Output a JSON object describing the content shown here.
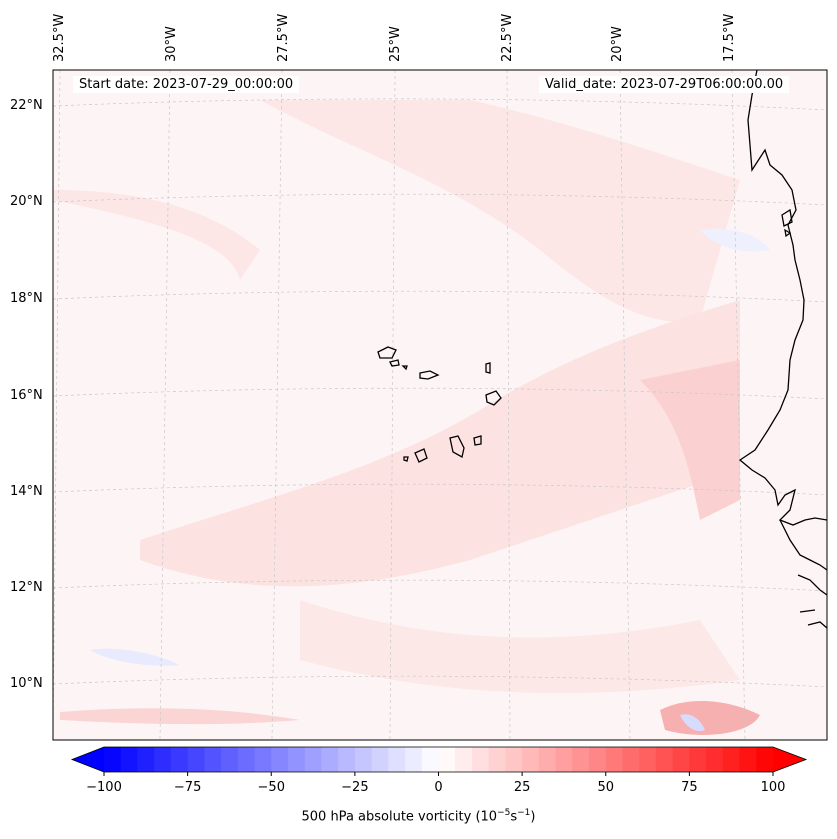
{
  "map": {
    "start_date": "Start date: 2023-07-29_00:00:00",
    "valid_date": "Valid_date: 2023-07-29T06:00:00.00",
    "lon_labels": [
      "32.5°W",
      "30°W",
      "27.5°W",
      "25°W",
      "22.5°W",
      "20°W",
      "17.5°W"
    ],
    "lat_labels": [
      "22°N",
      "20°N",
      "18°N",
      "16°N",
      "14°N",
      "12°N",
      "10°N"
    ],
    "colors": {
      "background": "#fdf5f5",
      "light_red": "#fde4e4",
      "medium_red": "#fbd0d0",
      "strong_red": "#f7b0b0",
      "light_blue": "#eef0fe",
      "coastline": "#000000",
      "gridline": "#c8c8c8"
    }
  },
  "colorbar": {
    "label": "500 hPa absolute vorticity (10",
    "label_exp1": "−5",
    "label_mid": "s",
    "label_exp2": "−1",
    "label_end": ")",
    "min": -100,
    "max": 100,
    "ticks": [
      "−100",
      "−75",
      "−50",
      "−25",
      "0",
      "25",
      "50",
      "75",
      "100"
    ],
    "colors": {
      "negative": "#0000ff",
      "zero": "#ffffff",
      "positive": "#ff0000"
    }
  }
}
